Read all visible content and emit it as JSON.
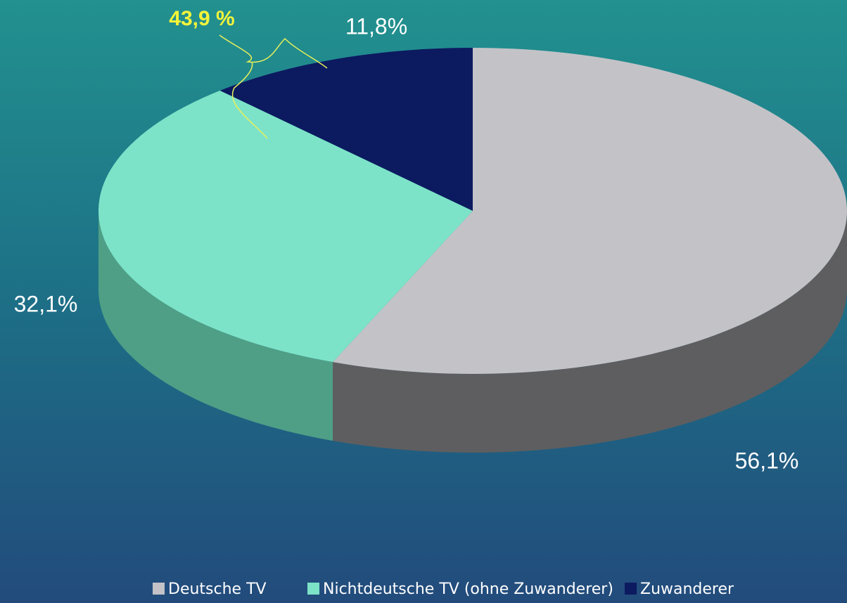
{
  "chart_data": {
    "type": "pie3d",
    "categories": [
      "Deutsche TV",
      "Nichtdeutsche TV (ohne Zuwanderer)",
      "Zuwanderer"
    ],
    "values": [
      56.1,
      32.1,
      11.8
    ],
    "value_labels": [
      "56,1%",
      "32,1%",
      "11,8%"
    ],
    "colors": [
      "#c3c3c7",
      "#7de3c8",
      "#0c1a60"
    ],
    "side_colors": [
      "#5e5e60",
      "#4f9f86",
      "#07103a"
    ],
    "annotation": "43,9 %",
    "annotation_color": "#f4f43a",
    "legend": "bottom"
  }
}
